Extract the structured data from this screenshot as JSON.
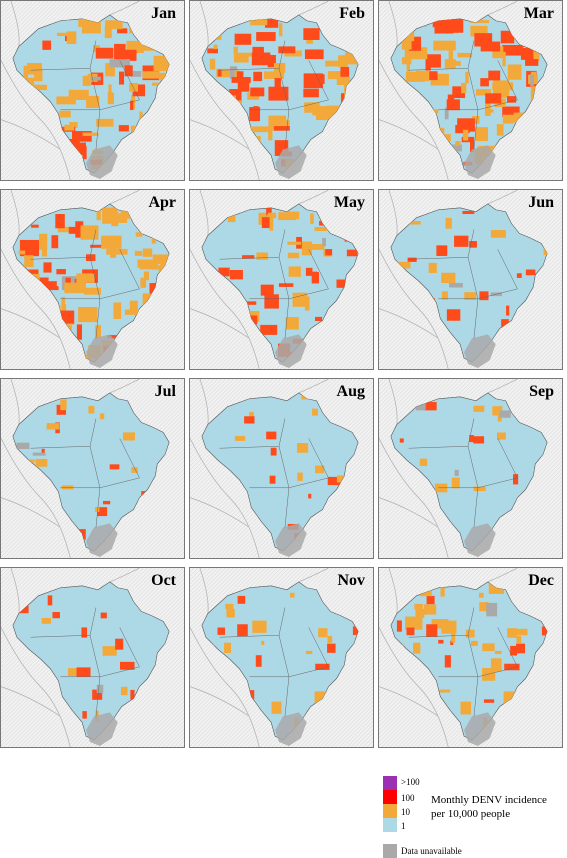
{
  "months": [
    "Jan",
    "Feb",
    "Mar",
    "Apr",
    "May",
    "Jun",
    "Jul",
    "Aug",
    "Sep",
    "Oct",
    "Nov",
    "Dec"
  ],
  "monthly_level": [
    0.72,
    0.7,
    0.85,
    0.78,
    0.55,
    0.3,
    0.25,
    0.22,
    0.2,
    0.28,
    0.4,
    0.48
  ],
  "colors": {
    "gt100": "#9b30b3",
    "c100": "#ff0000",
    "c100_dark": "#ff4a1a",
    "c10": "#f2a93a",
    "c1": "#add8e6",
    "unavailable": "#a9a9a9",
    "outside": "#e8e8e8"
  },
  "legend": {
    "ticks": [
      ">100",
      "100",
      "10",
      "1"
    ],
    "title_line1": "Monthly DENV incidence",
    "title_line2": "per 10,000 people",
    "unavailable_label": "Data unavailable"
  }
}
